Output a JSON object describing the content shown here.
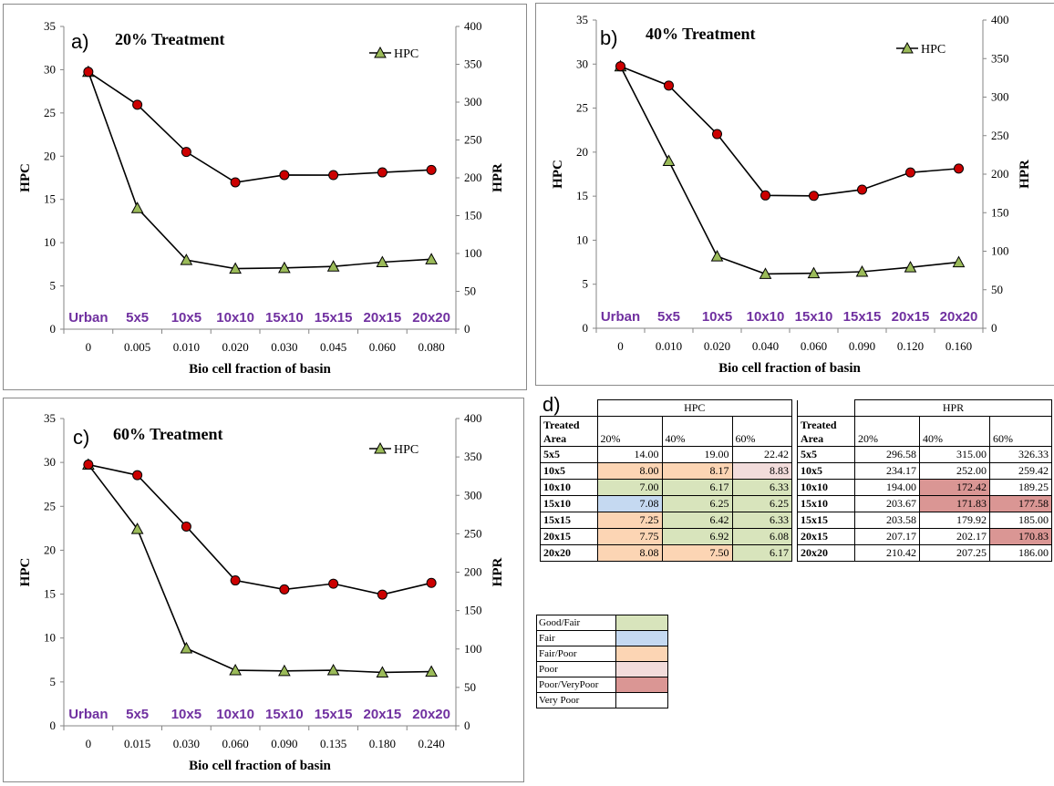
{
  "colors": {
    "hpc_marker": "#9bbb59",
    "hpr_marker": "#cc0000",
    "category": "#7030a0",
    "good_fair": "#d8e4bc",
    "fair": "#c5d9f1",
    "fair_poor": "#fcd5b4",
    "poor": "#f2dcdb",
    "poor_verypoor": "#da9694",
    "very_poor": "#ffffff"
  },
  "common": {
    "legend_label": "HPC",
    "ylabel_left": "HPC",
    "ylabel_right": "HPR",
    "xlabel": "Bio cell fraction of basin"
  },
  "chart_data": [
    {
      "type": "line",
      "letter": "a)",
      "title": "20% Treatment",
      "categories": [
        "Urban",
        "5x5",
        "10x5",
        "10x10",
        "15x10",
        "15x15",
        "20x15",
        "20x20"
      ],
      "x": [
        "0",
        "0.005",
        "0.010",
        "0.020",
        "0.030",
        "0.045",
        "0.060",
        "0.080"
      ],
      "ylim_left": [
        0,
        35
      ],
      "yticks_left": [
        0,
        5,
        10,
        15,
        20,
        25,
        30,
        35
      ],
      "ylim_right": [
        0,
        400
      ],
      "yticks_right": [
        0,
        50,
        100,
        150,
        200,
        250,
        300,
        350,
        400
      ],
      "series": [
        {
          "name": "HPC",
          "axis": "left",
          "marker": "triangle",
          "values": [
            29.75,
            14.0,
            8.0,
            7.0,
            7.08,
            7.25,
            7.75,
            8.08
          ]
        },
        {
          "axis": "right",
          "marker": "circle",
          "values": [
            340,
            296.58,
            234.17,
            194.0,
            203.67,
            203.58,
            207.17,
            210.42
          ]
        }
      ]
    },
    {
      "type": "line",
      "letter": "b)",
      "title": "40% Treatment",
      "categories": [
        "Urban",
        "5x5",
        "10x5",
        "10x10",
        "15x10",
        "15x15",
        "20x15",
        "20x20"
      ],
      "x": [
        "0",
        "0.010",
        "0.020",
        "0.040",
        "0.060",
        "0.090",
        "0.120",
        "0.160"
      ],
      "ylim_left": [
        0,
        35
      ],
      "yticks_left": [
        0,
        5,
        10,
        15,
        20,
        25,
        30,
        35
      ],
      "ylim_right": [
        0,
        400
      ],
      "yticks_right": [
        0,
        50,
        100,
        150,
        200,
        250,
        300,
        350,
        400
      ],
      "series": [
        {
          "name": "HPC",
          "axis": "left",
          "marker": "triangle",
          "values": [
            29.75,
            19.0,
            8.17,
            6.17,
            6.25,
            6.42,
            6.92,
            7.5
          ]
        },
        {
          "axis": "right",
          "marker": "circle",
          "values": [
            340,
            315.0,
            252.0,
            172.42,
            171.83,
            179.92,
            202.17,
            207.25
          ]
        }
      ]
    },
    {
      "type": "line",
      "letter": "c)",
      "title": "60% Treatment",
      "categories": [
        "Urban",
        "5x5",
        "10x5",
        "10x10",
        "15x10",
        "15x15",
        "20x15",
        "20x20"
      ],
      "x": [
        "0",
        "0.015",
        "0.030",
        "0.060",
        "0.090",
        "0.135",
        "0.180",
        "0.240"
      ],
      "ylim_left": [
        0,
        35
      ],
      "yticks_left": [
        0,
        5,
        10,
        15,
        20,
        25,
        30,
        35
      ],
      "ylim_right": [
        0,
        400
      ],
      "yticks_right": [
        0,
        50,
        100,
        150,
        200,
        250,
        300,
        350,
        400
      ],
      "series": [
        {
          "name": "HPC",
          "axis": "left",
          "marker": "triangle",
          "values": [
            29.75,
            22.42,
            8.83,
            6.33,
            6.25,
            6.33,
            6.08,
            6.17
          ]
        },
        {
          "axis": "right",
          "marker": "circle",
          "values": [
            340,
            326.33,
            259.42,
            189.25,
            177.58,
            185.0,
            170.83,
            186.0
          ]
        }
      ]
    }
  ],
  "table_d": {
    "letter": "d)",
    "hpc_header": "HPC",
    "hpr_header": "HPR",
    "treated_line1": "Treated",
    "treated_line2": "Area",
    "pct": [
      "20%",
      "40%",
      "60%"
    ],
    "rows": [
      {
        "area": "5x5",
        "hpc": [
          "14.00",
          "19.00",
          "22.42"
        ],
        "hpc_class": [
          "very_poor",
          "very_poor",
          "very_poor"
        ],
        "hpr": [
          "296.58",
          "315.00",
          "326.33"
        ],
        "hpr_class": [
          "very_poor",
          "very_poor",
          "very_poor"
        ]
      },
      {
        "area": "10x5",
        "hpc": [
          "8.00",
          "8.17",
          "8.83"
        ],
        "hpc_class": [
          "fair_poor",
          "fair_poor",
          "poor"
        ],
        "hpr": [
          "234.17",
          "252.00",
          "259.42"
        ],
        "hpr_class": [
          "very_poor",
          "very_poor",
          "very_poor"
        ]
      },
      {
        "area": "10x10",
        "hpc": [
          "7.00",
          "6.17",
          "6.33"
        ],
        "hpc_class": [
          "good_fair",
          "good_fair",
          "good_fair"
        ],
        "hpr": [
          "194.00",
          "172.42",
          "189.25"
        ],
        "hpr_class": [
          "very_poor",
          "poor_verypoor",
          "very_poor"
        ]
      },
      {
        "area": "15x10",
        "hpc": [
          "7.08",
          "6.25",
          "6.25"
        ],
        "hpc_class": [
          "fair",
          "good_fair",
          "good_fair"
        ],
        "hpr": [
          "203.67",
          "171.83",
          "177.58"
        ],
        "hpr_class": [
          "very_poor",
          "poor_verypoor",
          "poor_verypoor"
        ]
      },
      {
        "area": "15x15",
        "hpc": [
          "7.25",
          "6.42",
          "6.33"
        ],
        "hpc_class": [
          "fair_poor",
          "good_fair",
          "good_fair"
        ],
        "hpr": [
          "203.58",
          "179.92",
          "185.00"
        ],
        "hpr_class": [
          "very_poor",
          "very_poor",
          "very_poor"
        ]
      },
      {
        "area": "20x15",
        "hpc": [
          "7.75",
          "6.92",
          "6.08"
        ],
        "hpc_class": [
          "fair_poor",
          "good_fair",
          "good_fair"
        ],
        "hpr": [
          "207.17",
          "202.17",
          "170.83"
        ],
        "hpr_class": [
          "very_poor",
          "very_poor",
          "poor_verypoor"
        ]
      },
      {
        "area": "20x20",
        "hpc": [
          "8.08",
          "7.50",
          "6.17"
        ],
        "hpc_class": [
          "fair_poor",
          "fair_poor",
          "good_fair"
        ],
        "hpr": [
          "210.42",
          "207.25",
          "186.00"
        ],
        "hpr_class": [
          "very_poor",
          "very_poor",
          "very_poor"
        ]
      }
    ]
  },
  "legend": [
    {
      "label": "Good/Fair",
      "class": "good_fair"
    },
    {
      "label": "Fair",
      "class": "fair"
    },
    {
      "label": "Fair/Poor",
      "class": "fair_poor"
    },
    {
      "label": "Poor",
      "class": "poor"
    },
    {
      "label": "Poor/VeryPoor",
      "class": "poor_verypoor"
    },
    {
      "label": "Very Poor",
      "class": "very_poor"
    }
  ]
}
